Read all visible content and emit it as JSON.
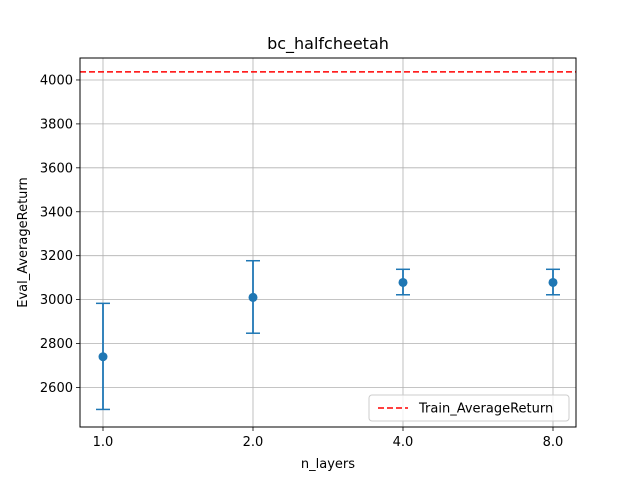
{
  "chart_data": {
    "type": "scatter",
    "title": "bc_halfcheetah",
    "xlabel": "n_layers",
    "ylabel": "Eval_AverageReturn",
    "categories": [
      "1.0",
      "2.0",
      "4.0",
      "8.0"
    ],
    "ylim": [
      2420,
      4100
    ],
    "yticks": [
      2600,
      2800,
      3000,
      3200,
      3400,
      3600,
      3800,
      4000
    ],
    "grid": true,
    "series": [
      {
        "values": [
          2740,
          3010,
          3078,
          3078
        ],
        "err_low": [
          2500,
          2847,
          3022,
          3022
        ],
        "err_high": [
          2983,
          3177,
          3138,
          3138
        ],
        "color": "#1f77b4"
      }
    ],
    "reference_line": {
      "name": "Train_AverageReturn",
      "value": 4037,
      "color": "#ff0000",
      "style": "dashed"
    },
    "legend": {
      "position": "lower-right",
      "entries": [
        "Train_AverageReturn"
      ]
    }
  }
}
